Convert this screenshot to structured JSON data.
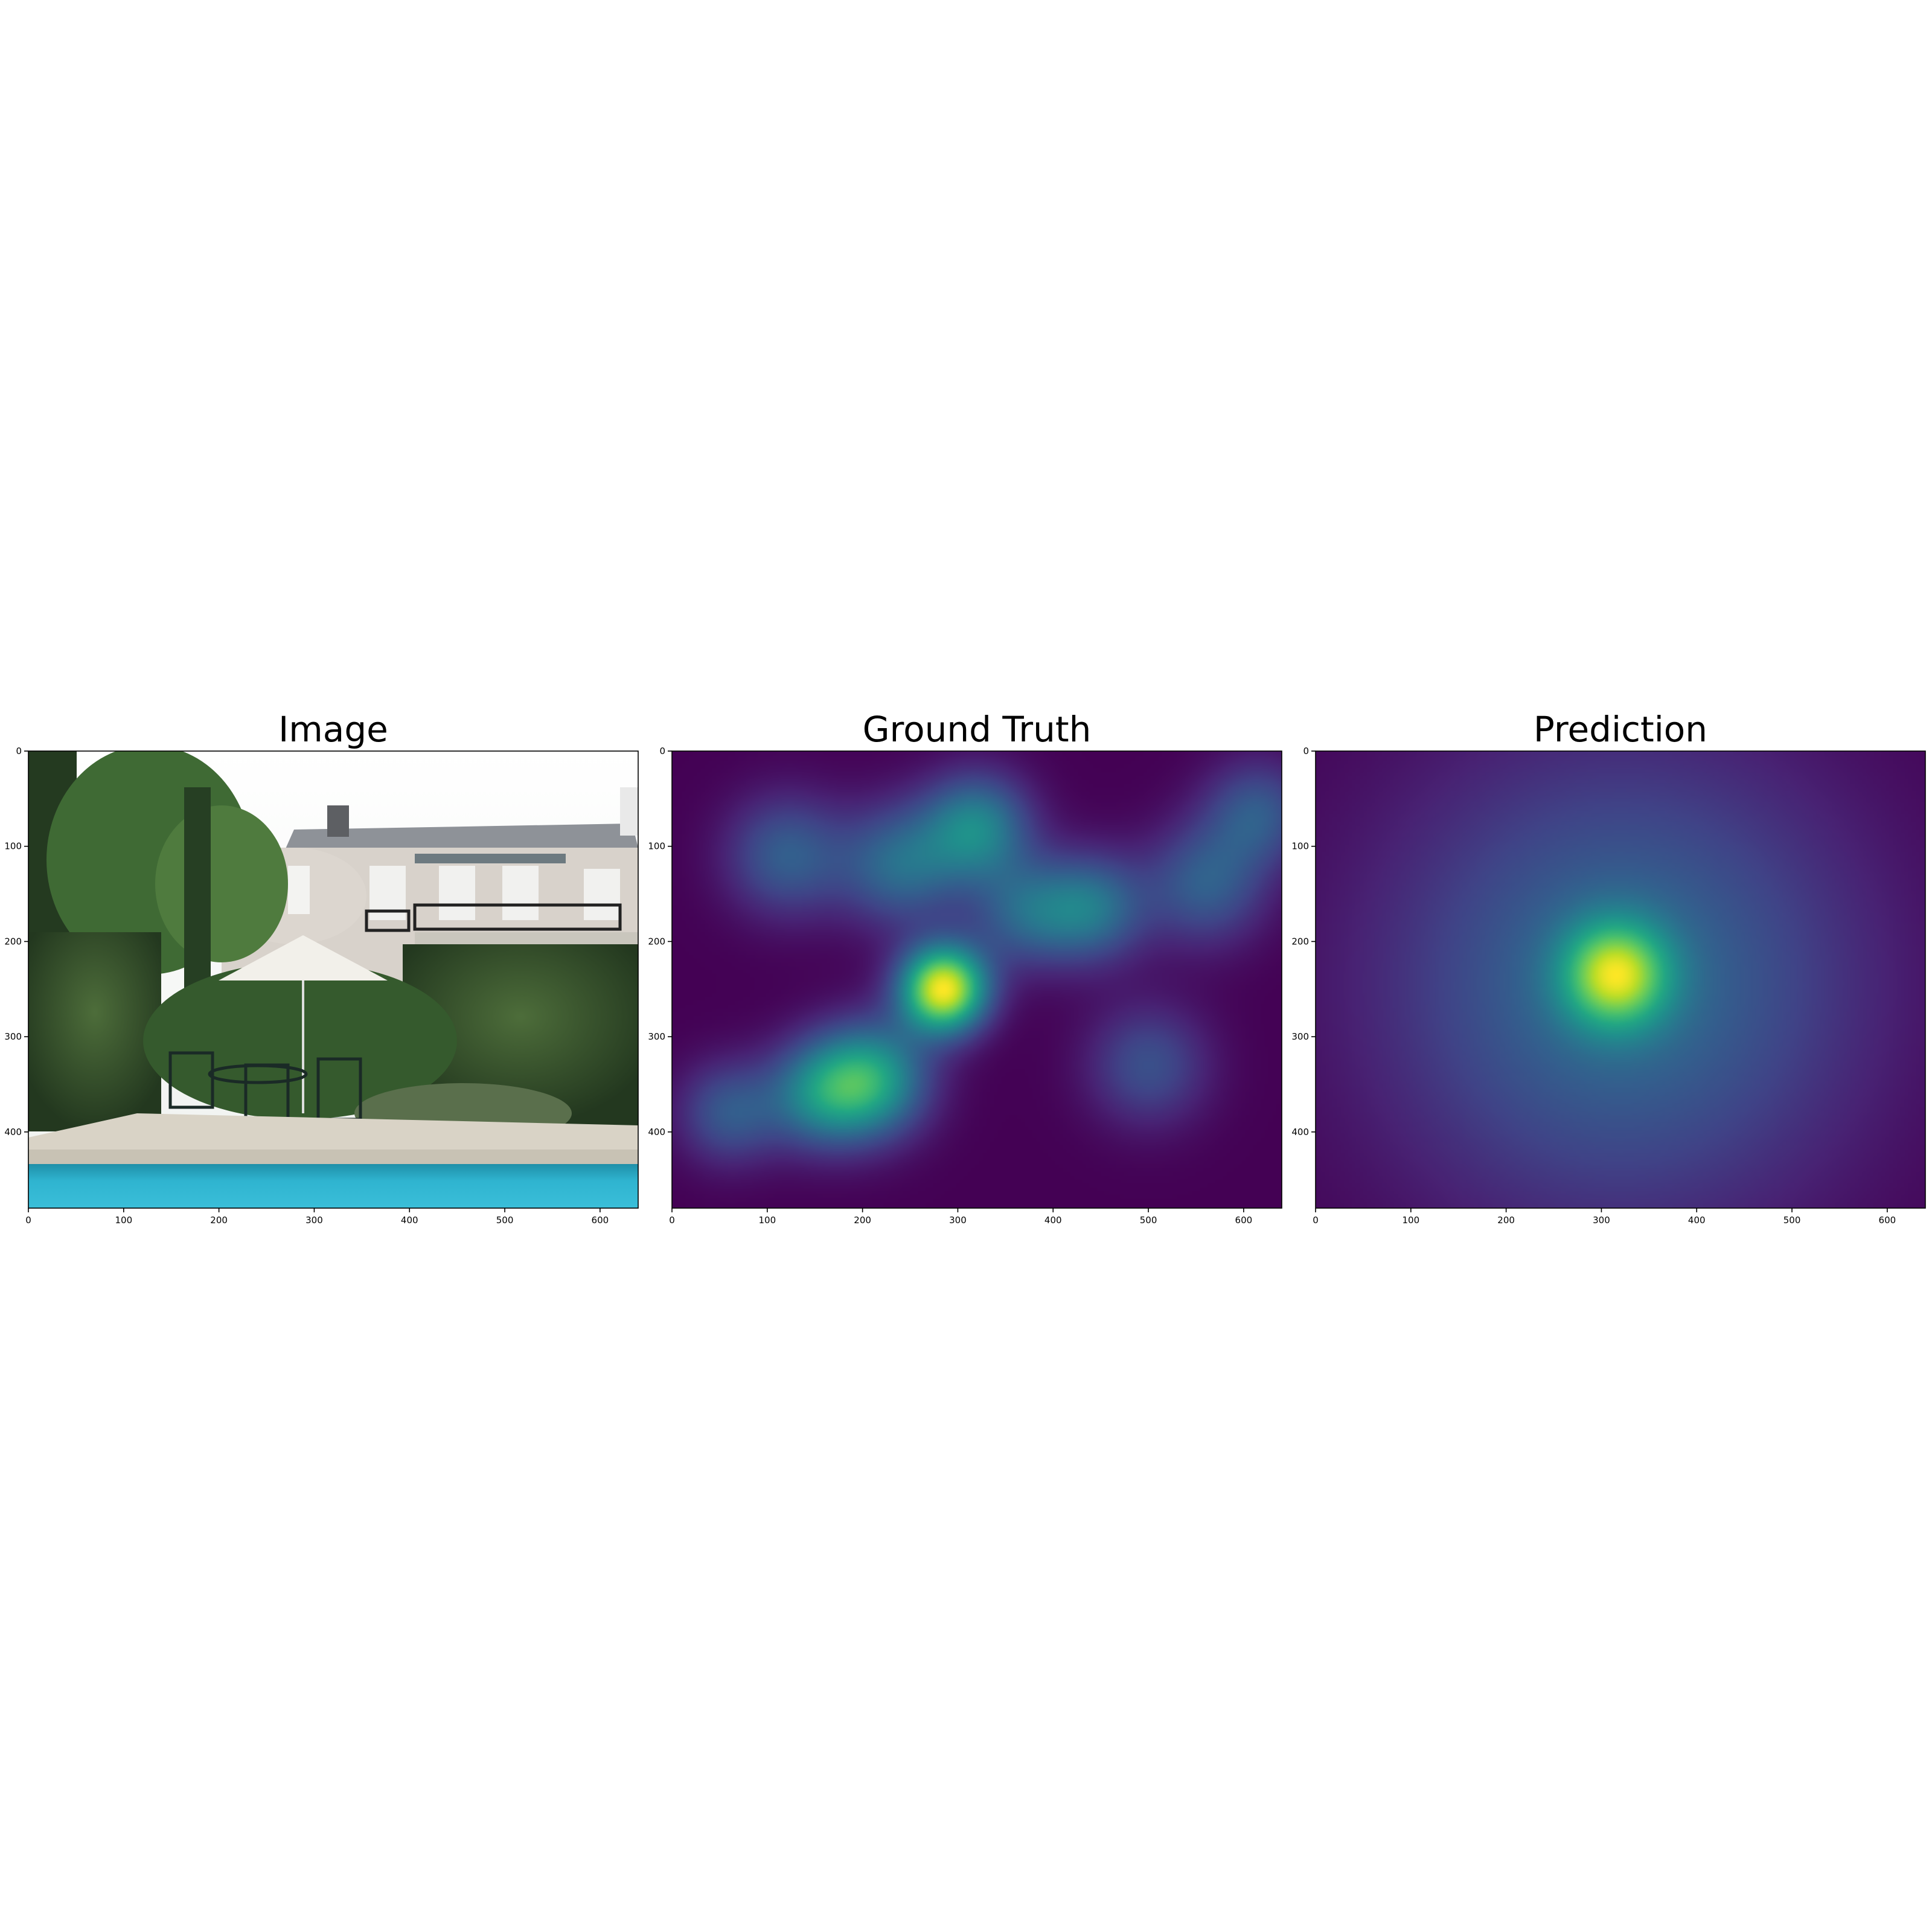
{
  "figure": {
    "panels": [
      {
        "id": "image",
        "title": "Image",
        "content": "photo",
        "photo_description_colors": {
          "sky": "#f4f6f4",
          "house_wall": "#d8d2cb",
          "roof": "#8e9298",
          "hedge": "#2f4a28",
          "hedge_light": "#4d6d3a",
          "umbrella": "#f2f0ea",
          "patio": "#d9d3c6",
          "pool": "#2fb4d0",
          "pool_dark": "#1f8fa8"
        }
      },
      {
        "id": "ground-truth",
        "title": "Ground Truth",
        "content": "heatmap",
        "hotspots": [
          {
            "x": 285,
            "y": 250,
            "weight": 1.0,
            "sigma": 32
          },
          {
            "x": 210,
            "y": 345,
            "weight": 0.55,
            "sigma": 42
          },
          {
            "x": 155,
            "y": 360,
            "weight": 0.4,
            "sigma": 40
          },
          {
            "x": 320,
            "y": 80,
            "weight": 0.45,
            "sigma": 40
          },
          {
            "x": 240,
            "y": 120,
            "weight": 0.35,
            "sigma": 45
          },
          {
            "x": 440,
            "y": 165,
            "weight": 0.38,
            "sigma": 40
          },
          {
            "x": 560,
            "y": 140,
            "weight": 0.3,
            "sigma": 45
          },
          {
            "x": 615,
            "y": 65,
            "weight": 0.28,
            "sigma": 40
          },
          {
            "x": 120,
            "y": 110,
            "weight": 0.3,
            "sigma": 45
          },
          {
            "x": 60,
            "y": 380,
            "weight": 0.28,
            "sigma": 38
          },
          {
            "x": 500,
            "y": 330,
            "weight": 0.25,
            "sigma": 45
          },
          {
            "x": 370,
            "y": 170,
            "weight": 0.3,
            "sigma": 40
          }
        ]
      },
      {
        "id": "prediction",
        "title": "Prediction",
        "content": "heatmap",
        "hotspots": [
          {
            "x": 315,
            "y": 235,
            "weight": 1.0,
            "sigma": 38
          },
          {
            "x": 320,
            "y": 245,
            "weight": 0.55,
            "sigma": 175
          }
        ]
      }
    ],
    "axes": {
      "x_ticks": [
        0,
        100,
        200,
        300,
        400,
        500,
        600
      ],
      "y_ticks": [
        0,
        100,
        200,
        300,
        400
      ],
      "xlim": [
        0,
        640
      ],
      "ylim": [
        480,
        0
      ]
    },
    "colormap": "viridis"
  },
  "chart_data": {
    "type": "heatmap",
    "title": "",
    "panel_titles": [
      "Image",
      "Ground Truth",
      "Prediction"
    ],
    "xlabel": "",
    "ylabel": "",
    "x_ticks": [
      0,
      100,
      200,
      300,
      400,
      500,
      600
    ],
    "y_ticks": [
      0,
      100,
      200,
      300,
      400
    ],
    "xlim": [
      0,
      640
    ],
    "ylim": [
      480,
      0
    ],
    "grid": false,
    "legend": "none"
  }
}
